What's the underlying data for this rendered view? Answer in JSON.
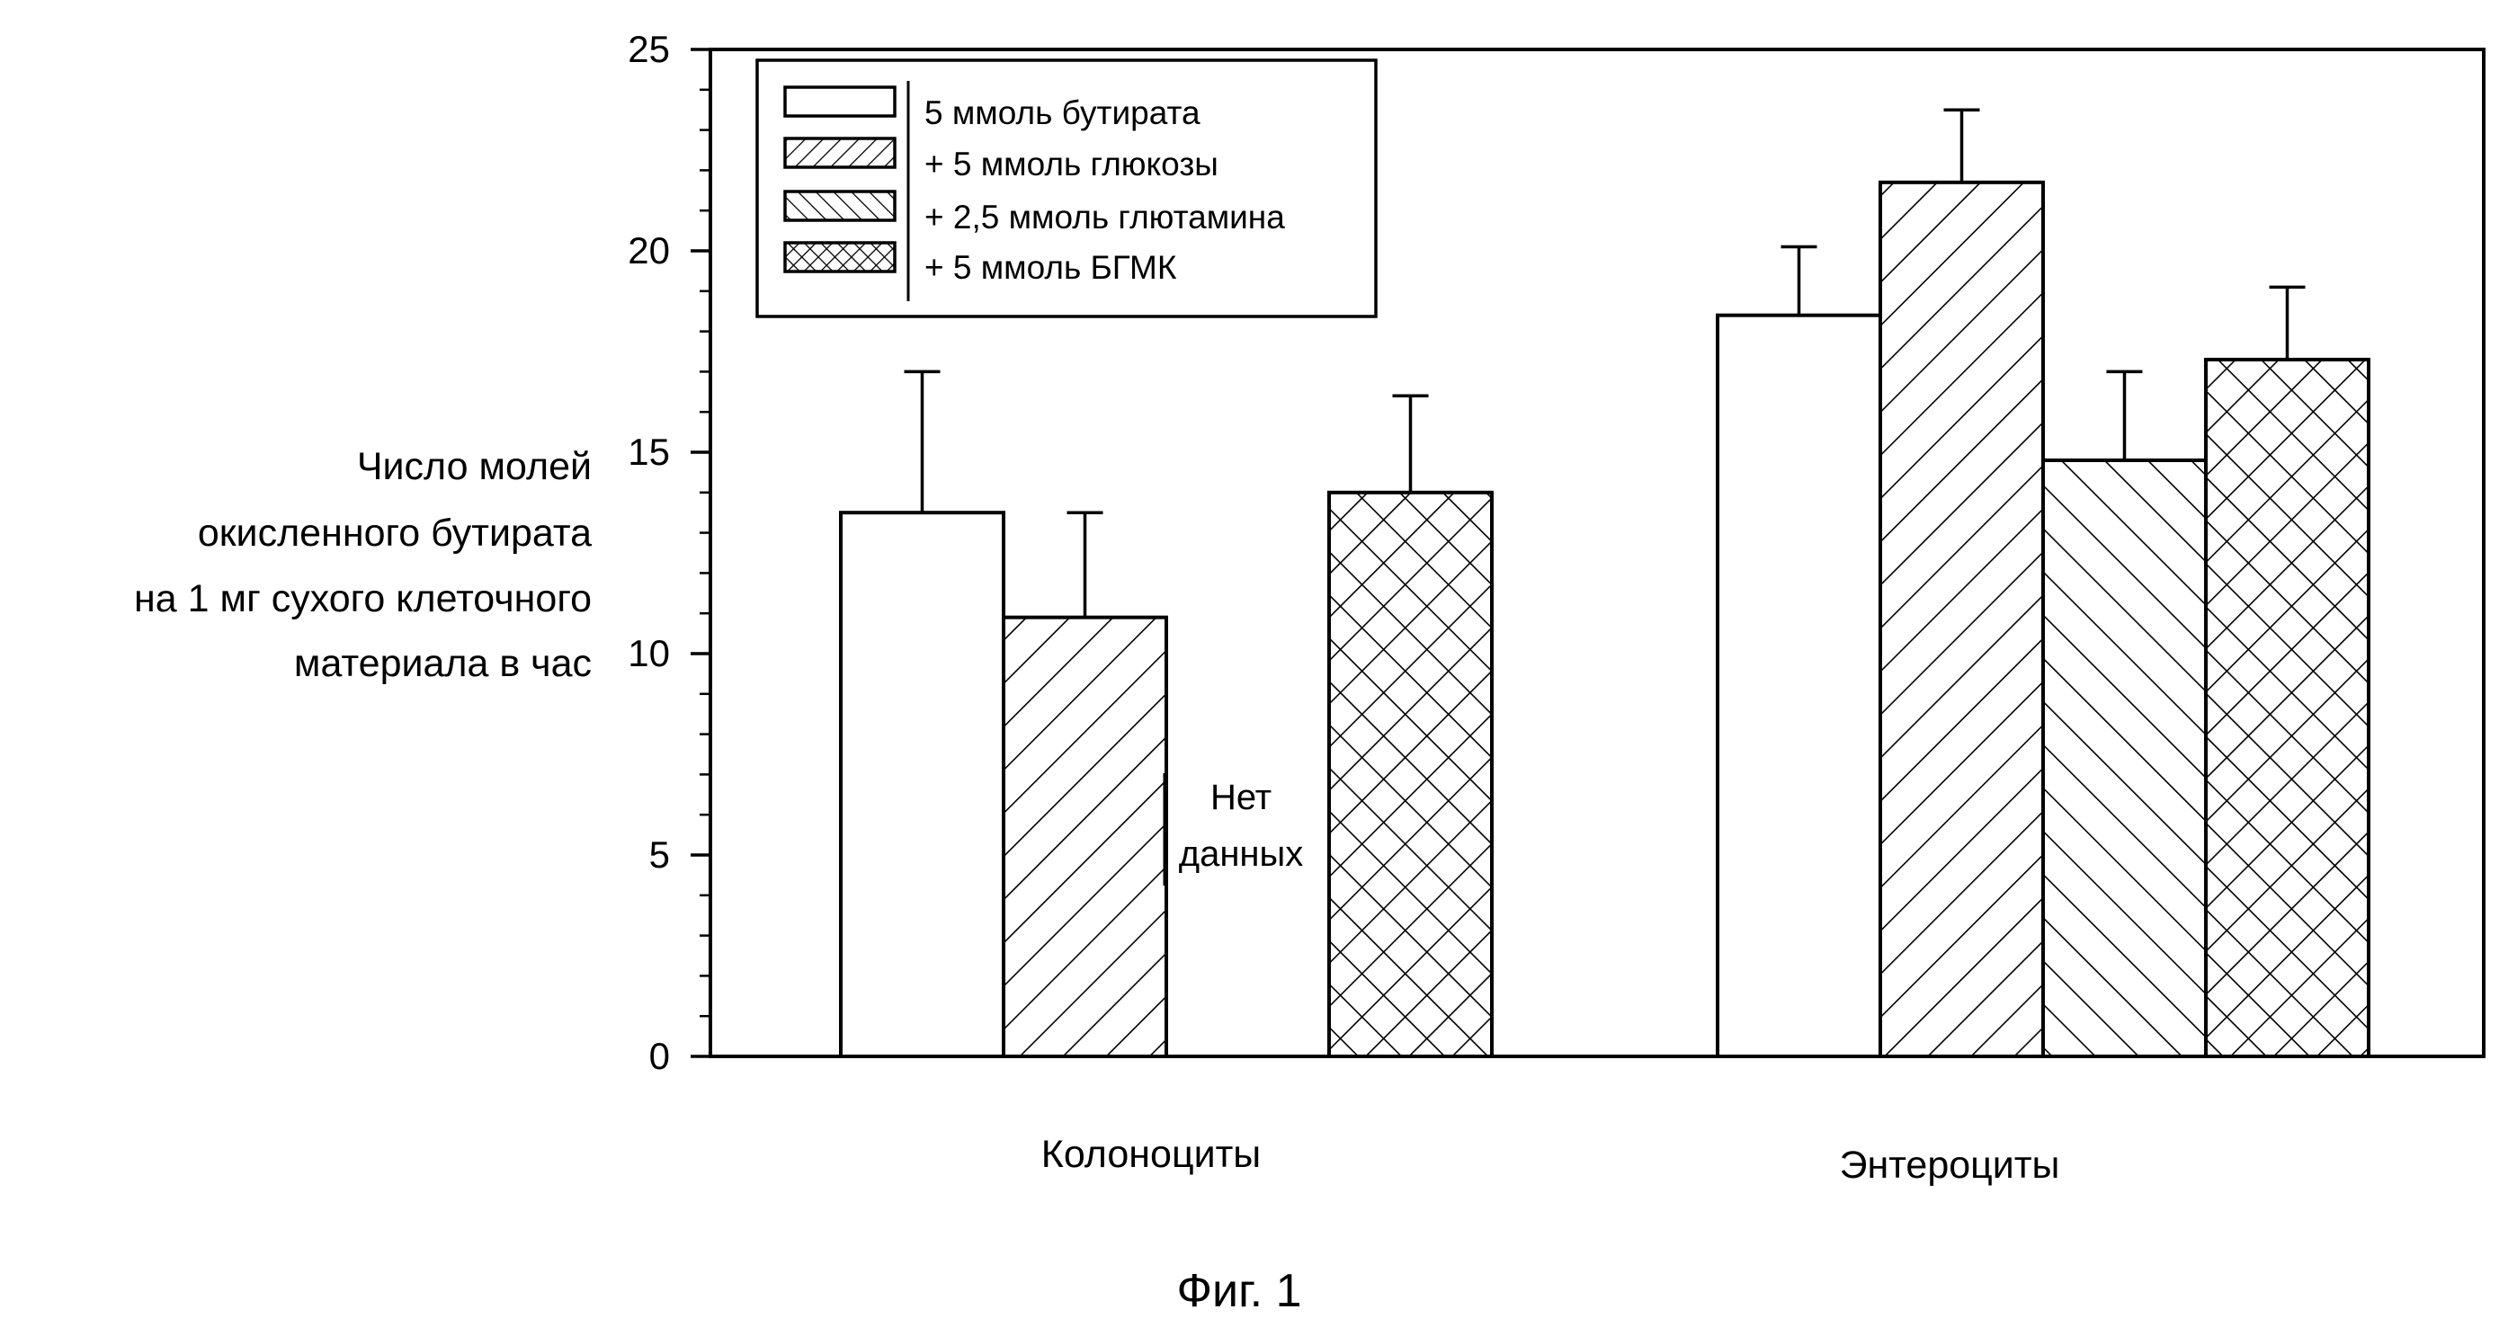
{
  "chart_data": {
    "type": "bar",
    "categories": [
      "Колоноциты",
      "Энтероциты"
    ],
    "series": [
      {
        "name": "5 ммоль бутирата",
        "pattern": "none",
        "values": [
          13.5,
          18.4
        ],
        "errors": [
          3.5,
          1.7
        ]
      },
      {
        "name": "+ 5 ммоль глюкозы",
        "pattern": "diag-forward",
        "values": [
          10.9,
          21.7
        ],
        "errors": [
          2.6,
          1.8
        ]
      },
      {
        "name": "+ 2,5 ммоль глютамина",
        "pattern": "diag-back",
        "values": [
          null,
          14.8
        ],
        "errors": [
          null,
          2.2
        ]
      },
      {
        "name": "+ 5 ммоль БГМК",
        "pattern": "crosshatch",
        "values": [
          14.0,
          17.3
        ],
        "errors": [
          2.4,
          1.8
        ]
      }
    ],
    "ylabel_lines": [
      "Число молей",
      "окисленного бутирата",
      "на 1 мг сухого клеточного",
      "материала в час"
    ],
    "ylim": [
      0,
      25
    ],
    "yticks": [
      "0",
      "5",
      "10",
      "15",
      "20",
      "25"
    ],
    "legend_position": "top-left",
    "annotation_lines": [
      "Нет",
      "данных"
    ],
    "caption": "Фиг.  1",
    "colors": {
      "ink": "#000000",
      "background": "#ffffff",
      "bar_fill": "#ffffff"
    }
  }
}
